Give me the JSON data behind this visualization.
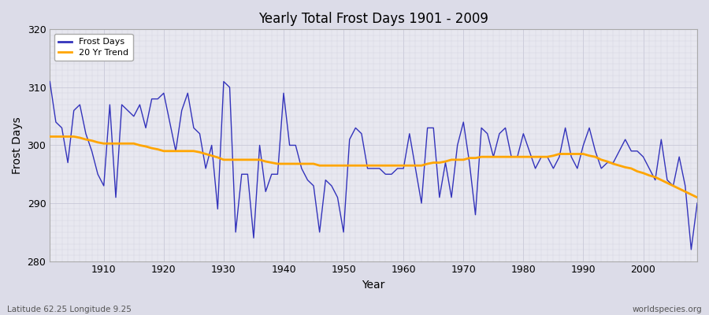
{
  "title": "Yearly Total Frost Days 1901 - 2009",
  "xlabel": "Year",
  "ylabel": "Frost Days",
  "lat_lon_label": "Latitude 62.25 Longitude 9.25",
  "watermark": "worldspecies.org",
  "ylim": [
    280,
    320
  ],
  "yticks": [
    280,
    290,
    300,
    310,
    320
  ],
  "xlim": [
    1901,
    2009
  ],
  "line_color": "#3333bb",
  "trend_color": "#ffa500",
  "bg_color": "#e8e8f0",
  "grid_color": "#ccccdd",
  "years": [
    1901,
    1902,
    1903,
    1904,
    1905,
    1906,
    1907,
    1908,
    1909,
    1910,
    1911,
    1912,
    1913,
    1914,
    1915,
    1916,
    1917,
    1918,
    1919,
    1920,
    1921,
    1922,
    1923,
    1924,
    1925,
    1926,
    1927,
    1928,
    1929,
    1930,
    1931,
    1932,
    1933,
    1934,
    1935,
    1936,
    1937,
    1938,
    1939,
    1940,
    1941,
    1942,
    1943,
    1944,
    1945,
    1946,
    1947,
    1948,
    1949,
    1950,
    1951,
    1952,
    1953,
    1954,
    1955,
    1956,
    1957,
    1958,
    1959,
    1960,
    1961,
    1962,
    1963,
    1964,
    1965,
    1966,
    1967,
    1968,
    1969,
    1970,
    1971,
    1972,
    1973,
    1974,
    1975,
    1976,
    1977,
    1978,
    1979,
    1980,
    1981,
    1982,
    1983,
    1984,
    1985,
    1986,
    1987,
    1988,
    1989,
    1990,
    1991,
    1992,
    1993,
    1994,
    1995,
    1996,
    1997,
    1998,
    1999,
    2000,
    2001,
    2002,
    2003,
    2004,
    2005,
    2006,
    2007,
    2008,
    2009
  ],
  "frost_days": [
    311,
    304,
    303,
    297,
    306,
    307,
    302,
    299,
    295,
    293,
    307,
    291,
    307,
    306,
    305,
    307,
    303,
    308,
    308,
    309,
    304,
    299,
    306,
    309,
    303,
    302,
    296,
    300,
    289,
    311,
    310,
    285,
    295,
    295,
    284,
    300,
    292,
    295,
    295,
    309,
    300,
    300,
    296,
    294,
    293,
    285,
    294,
    293,
    291,
    285,
    301,
    303,
    302,
    296,
    296,
    296,
    295,
    295,
    296,
    296,
    302,
    296,
    290,
    303,
    303,
    291,
    297,
    291,
    300,
    304,
    297,
    288,
    303,
    302,
    298,
    302,
    303,
    298,
    298,
    302,
    299,
    296,
    298,
    298,
    296,
    298,
    303,
    298,
    296,
    300,
    303,
    299,
    296,
    297,
    297,
    299,
    301,
    299,
    299,
    298,
    296,
    294,
    301,
    294,
    293,
    298,
    293,
    282,
    290
  ],
  "trend": [
    301.5,
    301.5,
    301.5,
    301.5,
    301.5,
    301.3,
    301.0,
    300.8,
    300.5,
    300.3,
    300.3,
    300.3,
    300.3,
    300.3,
    300.3,
    300.0,
    299.8,
    299.5,
    299.3,
    299.0,
    299.0,
    299.0,
    299.0,
    299.0,
    299.0,
    298.8,
    298.5,
    298.2,
    297.9,
    297.5,
    297.5,
    297.5,
    297.5,
    297.5,
    297.5,
    297.5,
    297.2,
    297.0,
    296.8,
    296.8,
    296.8,
    296.8,
    296.8,
    296.8,
    296.8,
    296.5,
    296.5,
    296.5,
    296.5,
    296.5,
    296.5,
    296.5,
    296.5,
    296.5,
    296.5,
    296.5,
    296.5,
    296.5,
    296.5,
    296.5,
    296.5,
    296.5,
    296.5,
    296.8,
    297.0,
    297.0,
    297.2,
    297.5,
    297.5,
    297.5,
    297.8,
    297.8,
    298.0,
    298.0,
    298.0,
    298.0,
    298.0,
    298.0,
    298.0,
    298.0,
    298.0,
    298.0,
    298.0,
    298.0,
    298.2,
    298.5,
    298.5,
    298.5,
    298.5,
    298.5,
    298.2,
    298.0,
    297.5,
    297.2,
    296.8,
    296.5,
    296.2,
    296.0,
    295.5,
    295.2,
    294.8,
    294.5,
    294.0,
    293.5,
    293.0,
    292.5,
    292.0,
    291.5,
    291.0
  ]
}
